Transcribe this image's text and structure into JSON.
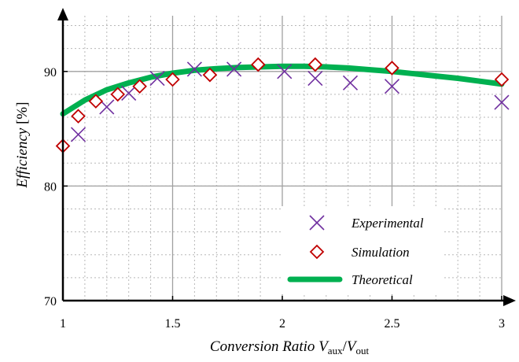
{
  "chart_data": {
    "type": "scatter",
    "title": "",
    "xlabel": {
      "main": "Conversion Ratio ",
      "v1": "V",
      "s1": "aux",
      "slash": "/",
      "v2": "V",
      "s2": "out"
    },
    "ylabel": {
      "main": "Efficiency",
      "unit": " [%]"
    },
    "xlim": [
      1,
      3
    ],
    "ylim": [
      70,
      95
    ],
    "x_ticks": [
      {
        "value": 1,
        "label": "1"
      },
      {
        "value": 1.5,
        "label": "1.5"
      },
      {
        "value": 2,
        "label": "2"
      },
      {
        "value": 2.5,
        "label": "2.5"
      },
      {
        "value": 3,
        "label": "3"
      }
    ],
    "y_ticks": [
      {
        "value": 70,
        "label": "70"
      },
      {
        "value": 80,
        "label": "80"
      },
      {
        "value": 90,
        "label": "90"
      }
    ],
    "grid": true,
    "legend_position": "bottom-right",
    "series": [
      {
        "name": "Experimental",
        "marker": "x",
        "color": "#7030A0",
        "points": [
          [
            1.07,
            84.5
          ],
          [
            1.2,
            86.9
          ],
          [
            1.3,
            88.1
          ],
          [
            1.43,
            89.4
          ],
          [
            1.6,
            90.2
          ],
          [
            1.78,
            90.2
          ],
          [
            2.01,
            90.0
          ],
          [
            2.15,
            89.4
          ],
          [
            2.31,
            89.0
          ],
          [
            2.5,
            88.7
          ],
          [
            3.0,
            87.3
          ]
        ]
      },
      {
        "name": "Simulation",
        "marker": "diamond",
        "color": "#C00000",
        "points": [
          [
            1.0,
            83.5
          ],
          [
            1.07,
            86.1
          ],
          [
            1.15,
            87.4
          ],
          [
            1.25,
            88.0
          ],
          [
            1.35,
            88.7
          ],
          [
            1.5,
            89.3
          ],
          [
            1.67,
            89.7
          ],
          [
            1.89,
            90.6
          ],
          [
            2.15,
            90.6
          ],
          [
            2.5,
            90.3
          ],
          [
            3.0,
            89.3
          ]
        ]
      },
      {
        "name": "Theoretical",
        "marker": "line",
        "color": "#00B050",
        "points": [
          [
            1.0,
            86.3
          ],
          [
            1.1,
            87.5
          ],
          [
            1.2,
            88.4
          ],
          [
            1.3,
            89.0
          ],
          [
            1.4,
            89.5
          ],
          [
            1.5,
            89.85
          ],
          [
            1.6,
            90.1
          ],
          [
            1.7,
            90.25
          ],
          [
            1.8,
            90.35
          ],
          [
            1.9,
            90.4
          ],
          [
            2.0,
            90.45
          ],
          [
            2.1,
            90.45
          ],
          [
            2.2,
            90.4
          ],
          [
            2.3,
            90.3
          ],
          [
            2.4,
            90.15
          ],
          [
            2.5,
            90.0
          ],
          [
            2.6,
            89.8
          ],
          [
            2.7,
            89.6
          ],
          [
            2.8,
            89.4
          ],
          [
            2.9,
            89.15
          ],
          [
            3.0,
            88.9
          ]
        ]
      }
    ]
  }
}
